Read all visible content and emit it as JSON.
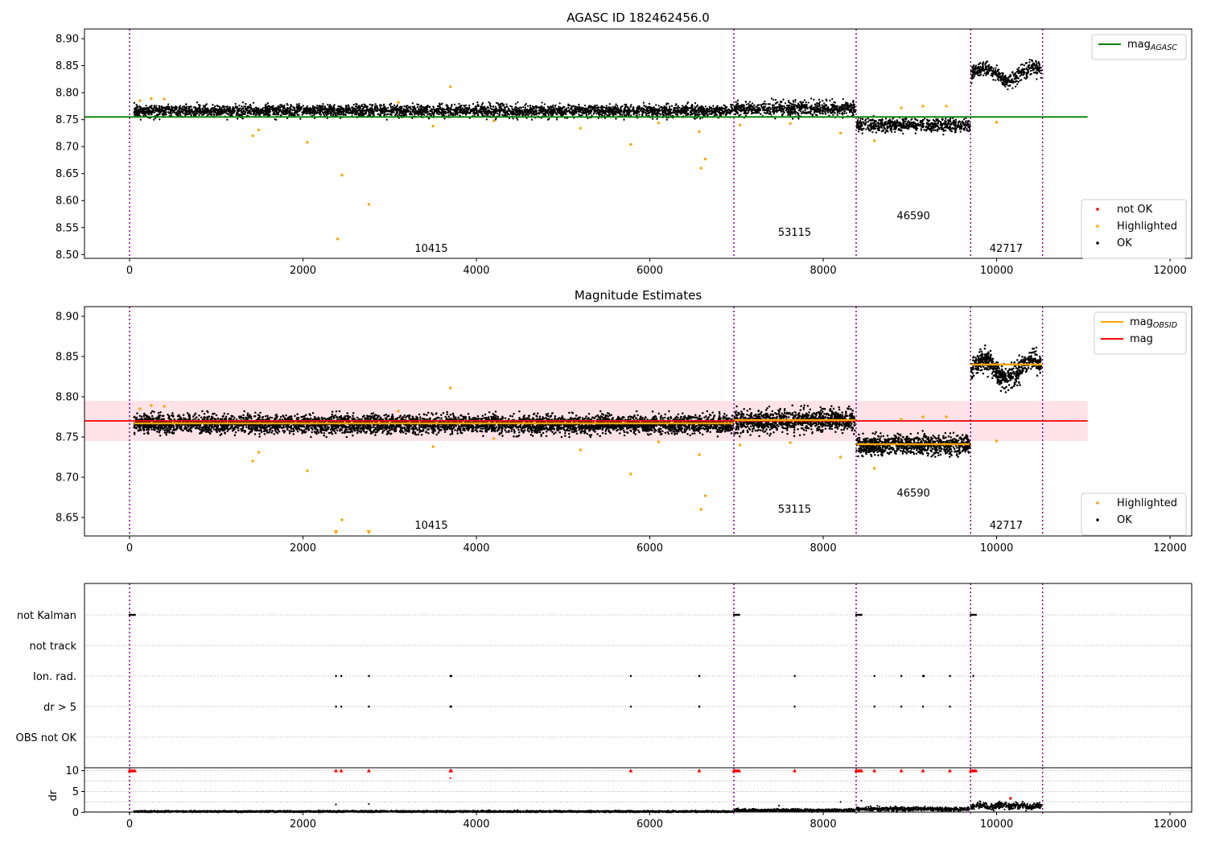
{
  "figure": {
    "title_top": "AGASC ID 182462456.0",
    "title_mid": "Magnitude Estimates"
  },
  "colors": {
    "ok": "#000000",
    "highlighted": "#ffa500",
    "not_ok": "#ff0000",
    "mag_agasc": "#008000",
    "mag_obsid": "#ffa500",
    "mag": "#ff0000",
    "band": "#ffc0cb",
    "obsid_line": "#800080",
    "grid": "#b0b0b0"
  },
  "chart_data": [
    {
      "type": "scatter",
      "title": "AGASC ID 182462456.0",
      "xlim": [
        -520,
        12250
      ],
      "ylim": [
        8.493,
        8.918
      ],
      "xticks": [
        0,
        2000,
        4000,
        6000,
        8000,
        10000,
        12000
      ],
      "yticks": [
        8.5,
        8.55,
        8.6,
        8.65,
        8.7,
        8.75,
        8.8,
        8.85,
        8.9
      ],
      "obsid_boundaries": [
        0,
        6970,
        8380,
        9700,
        10530
      ],
      "segments": [
        {
          "obsid": "10415",
          "x0": 50,
          "x1": 6960,
          "mean": 8.766,
          "spread": 0.01,
          "label_x": 3480,
          "label_y": 8.505
        },
        {
          "obsid": "53115",
          "x0": 6975,
          "x1": 8370,
          "mean": 8.77,
          "spread": 0.012,
          "label_x": 7670,
          "label_y": 8.535
        },
        {
          "obsid": "46590",
          "x0": 8385,
          "x1": 9690,
          "mean": 8.74,
          "spread": 0.011,
          "label_x": 9040,
          "label_y": 8.565
        },
        {
          "obsid": "42717",
          "x0": 9705,
          "x1": 10520,
          "mean": 8.84,
          "spread": 0.012,
          "label_x": 10110,
          "label_y": 8.505
        }
      ],
      "highlighted_points": [
        [
          120,
          8.785
        ],
        [
          250,
          8.789
        ],
        [
          400,
          8.788
        ],
        [
          1420,
          8.72
        ],
        [
          1490,
          8.731
        ],
        [
          2050,
          8.708
        ],
        [
          2400,
          8.529
        ],
        [
          2450,
          8.647
        ],
        [
          2760,
          8.593
        ],
        [
          3100,
          8.782
        ],
        [
          3500,
          8.738
        ],
        [
          3700,
          8.811
        ],
        [
          4200,
          8.748
        ],
        [
          5200,
          8.734
        ],
        [
          5780,
          8.704
        ],
        [
          6100,
          8.744
        ],
        [
          6570,
          8.728
        ],
        [
          6590,
          8.66
        ],
        [
          6640,
          8.677
        ],
        [
          7040,
          8.74
        ],
        [
          7620,
          8.743
        ],
        [
          8200,
          8.725
        ],
        [
          8590,
          8.711
        ],
        [
          8900,
          8.772
        ],
        [
          9150,
          8.775
        ],
        [
          9420,
          8.775
        ],
        [
          10000,
          8.745
        ]
      ],
      "not_ok_points": [],
      "mag_agasc": 8.755,
      "mag_agasc_range": [
        -520,
        11050
      ],
      "legend_top": [
        {
          "label": "mag",
          "sub": "AGASC",
          "color": "#008000"
        }
      ],
      "legend_bottom": [
        {
          "label": "not OK",
          "color": "#ff0000"
        },
        {
          "label": "Highlighted",
          "color": "#ffa500"
        },
        {
          "label": "OK",
          "color": "#000000"
        }
      ]
    },
    {
      "type": "scatter",
      "title": "Magnitude Estimates",
      "xlim": [
        -520,
        12250
      ],
      "ylim": [
        8.627,
        8.912
      ],
      "xticks": [
        0,
        2000,
        4000,
        6000,
        8000,
        10000,
        12000
      ],
      "yticks": [
        8.65,
        8.7,
        8.75,
        8.8,
        8.85,
        8.9
      ],
      "obsid_boundaries": [
        0,
        6970,
        8380,
        9700,
        10530
      ],
      "segments": [
        {
          "obsid": "10415",
          "x0": 50,
          "x1": 6960,
          "mean": 8.766,
          "spread": 0.01,
          "label_x": 3480,
          "label_y": 8.636,
          "mag_obsid": 8.767
        },
        {
          "obsid": "53115",
          "x0": 6975,
          "x1": 8370,
          "mean": 8.77,
          "spread": 0.012,
          "label_x": 7670,
          "label_y": 8.656,
          "mag_obsid": 8.771
        },
        {
          "obsid": "46590",
          "x0": 8385,
          "x1": 9690,
          "mean": 8.74,
          "spread": 0.011,
          "label_x": 9040,
          "label_y": 8.676,
          "mag_obsid": 8.741
        },
        {
          "obsid": "42717",
          "x0": 9705,
          "x1": 10520,
          "mean": 8.84,
          "spread": 0.012,
          "label_x": 10110,
          "label_y": 8.636,
          "mag_obsid": 8.84
        }
      ],
      "highlighted_points": [
        [
          120,
          8.785
        ],
        [
          250,
          8.789
        ],
        [
          400,
          8.788
        ],
        [
          1420,
          8.72
        ],
        [
          1490,
          8.731
        ],
        [
          2050,
          8.708
        ],
        [
          2450,
          8.647
        ],
        [
          3100,
          8.782
        ],
        [
          3500,
          8.738
        ],
        [
          3700,
          8.811
        ],
        [
          4200,
          8.748
        ],
        [
          5200,
          8.734
        ],
        [
          5780,
          8.704
        ],
        [
          6100,
          8.744
        ],
        [
          6570,
          8.728
        ],
        [
          6590,
          8.66
        ],
        [
          6640,
          8.677
        ],
        [
          7040,
          8.74
        ],
        [
          7620,
          8.743
        ],
        [
          8200,
          8.725
        ],
        [
          8590,
          8.711
        ],
        [
          8900,
          8.772
        ],
        [
          9150,
          8.775
        ],
        [
          9420,
          8.775
        ],
        [
          10000,
          8.745
        ]
      ],
      "below_range_markers": [
        2380,
        2760
      ],
      "mag": 8.77,
      "mag_band": [
        8.745,
        8.795
      ],
      "mag_range": [
        -520,
        11050
      ],
      "legend_top": [
        {
          "label": "mag",
          "sub": "OBSID",
          "color": "#ffa500"
        },
        {
          "label": "mag",
          "sub": "",
          "color": "#ff0000"
        }
      ],
      "legend_bottom": [
        {
          "label": "Highlighted",
          "color": "#ffa500"
        },
        {
          "label": "OK",
          "color": "#000000"
        }
      ]
    },
    {
      "type": "scatter",
      "title": "",
      "xlim": [
        -520,
        12250
      ],
      "xticks": [
        0,
        2000,
        4000,
        6000,
        8000,
        10000,
        12000
      ],
      "obsid_boundaries": [
        0,
        6970,
        8380,
        9700,
        10530
      ],
      "flag_rows": [
        "not Kalman",
        "not track",
        "Ion. rad.",
        "dr > 5",
        "OBS not OK"
      ],
      "flag_events": {
        "not Kalman": [
          0,
          20,
          40,
          60,
          6970,
          6990,
          7010,
          7030,
          8380,
          8400,
          8420,
          8440,
          9700,
          9720,
          9740,
          9760
        ],
        "not track": [],
        "Ion. rad.": [
          2380,
          2440,
          2760,
          3700,
          3710,
          5780,
          6570,
          7670,
          8590,
          8900,
          9150,
          9160,
          9460,
          9730
        ],
        "dr > 5": [
          2380,
          2440,
          2760,
          3700,
          3710,
          5780,
          6570,
          7670,
          8590,
          8900,
          9150,
          9460
        ],
        "OBS not OK": []
      },
      "dr_ylabel": "dr",
      "dr_yticks": [
        0,
        5,
        10
      ],
      "dr_ylim": [
        -0.5,
        10.5
      ],
      "dr_segments": [
        {
          "x0": 50,
          "x1": 6960,
          "mean": 0.2,
          "spread": 0.15
        },
        {
          "x0": 6975,
          "x1": 8370,
          "mean": 0.5,
          "spread": 0.25
        },
        {
          "x0": 8385,
          "x1": 9690,
          "mean": 0.8,
          "spread": 0.35
        },
        {
          "x0": 9705,
          "x1": 10520,
          "mean": 1.2,
          "spread": 0.6
        }
      ],
      "dr_clipped_x": [
        0,
        20,
        40,
        60,
        2380,
        2440,
        2760,
        3700,
        3710,
        5780,
        6570,
        6970,
        6990,
        7010,
        7030,
        7670,
        8380,
        8400,
        8420,
        8440,
        8590,
        8900,
        9150,
        9460,
        9700,
        9720,
        9740,
        9760
      ],
      "dr_extra_points": [
        [
          3700,
          8.2
        ],
        [
          2380,
          1.9
        ],
        [
          2760,
          2.0
        ],
        [
          8200,
          2.5
        ],
        [
          7490,
          1.6
        ],
        [
          10160,
          3.2
        ],
        [
          8440,
          2.8
        ]
      ]
    }
  ]
}
